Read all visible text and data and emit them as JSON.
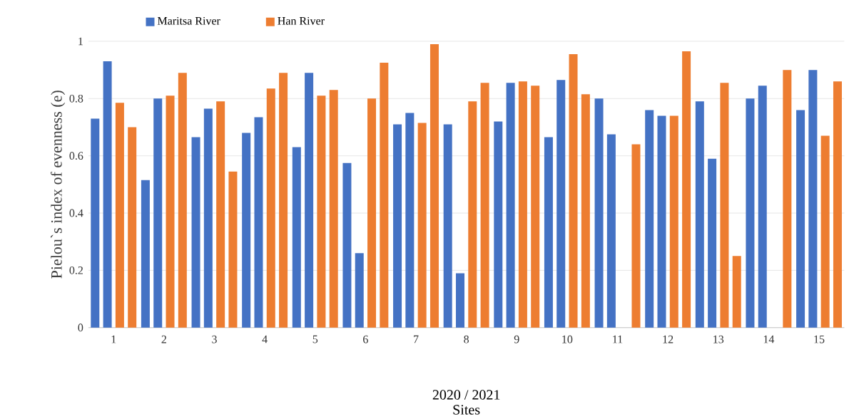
{
  "chart_data": {
    "type": "bar",
    "xlabel": "Sites",
    "ylabel": "Pielou`s index of evenness (e)",
    "annotations": [
      "2020 / 2021"
    ],
    "categories": [
      "1",
      "2",
      "3",
      "4",
      "5",
      "6",
      "7",
      "8",
      "9",
      "10",
      "11",
      "12",
      "13",
      "14",
      "15"
    ],
    "series": [
      {
        "name": "Maritsa River",
        "color": "#4472c4",
        "values": [
          0.73,
          0.515,
          0.665,
          0.68,
          0.63,
          0.575,
          0.71,
          0.71,
          0.72,
          0.665,
          0.8,
          0.76,
          0.79,
          0.8,
          0.76
        ]
      },
      {
        "color": "#4472c4",
        "values": [
          0.93,
          0.8,
          0.765,
          0.735,
          0.89,
          0.26,
          0.75,
          0.19,
          0.855,
          0.865,
          0.675,
          0.74,
          0.59,
          0.845,
          0.9
        ]
      },
      {
        "name": "Han River",
        "color": "#ed7d31",
        "values": [
          0.785,
          0.81,
          0.79,
          0.835,
          0.81,
          0.8,
          0.715,
          0.79,
          0.86,
          0.955,
          null,
          0.74,
          0.855,
          null,
          0.67
        ]
      },
      {
        "color": "#ed7d31",
        "values": [
          0.7,
          0.89,
          0.545,
          0.89,
          0.83,
          0.925,
          0.99,
          0.855,
          0.845,
          0.815,
          0.64,
          0.965,
          0.25,
          0.9,
          0.86
        ]
      }
    ],
    "ylim": [
      0,
      1
    ],
    "yticks": [
      0,
      0.2,
      0.4,
      0.6,
      0.8,
      1
    ],
    "grid": "y",
    "legend": "top left"
  }
}
